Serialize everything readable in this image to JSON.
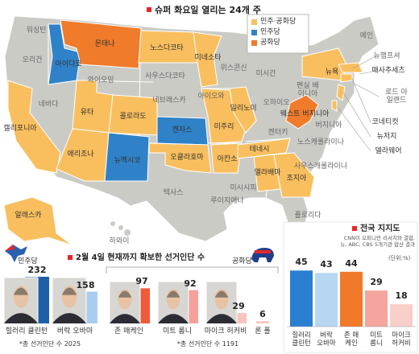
{
  "map": {
    "title": "슈퍼 화요일 열리는 24개 주",
    "legend": [
      {
        "label": "민주·공화당",
        "color": "#f9bf5e"
      },
      {
        "label": "민주당",
        "color": "#2f82c8"
      },
      {
        "label": "공화당",
        "color": "#f07b2b"
      }
    ],
    "states": [
      {
        "name": "워싱턴",
        "party": null
      },
      {
        "name": "오리건",
        "party": null
      },
      {
        "name": "캘리포니아",
        "party": 0
      },
      {
        "name": "네바다",
        "party": null
      },
      {
        "name": "아이다호",
        "party": 1
      },
      {
        "name": "몬태나",
        "party": 2
      },
      {
        "name": "와이오밍",
        "party": null
      },
      {
        "name": "유타",
        "party": 0
      },
      {
        "name": "애리조나",
        "party": 0
      },
      {
        "name": "콜로라도",
        "party": 0
      },
      {
        "name": "뉴멕시코",
        "party": 1
      },
      {
        "name": "노스다코타",
        "party": 0
      },
      {
        "name": "사우스다코타",
        "party": null
      },
      {
        "name": "네브래스카",
        "party": null
      },
      {
        "name": "캔자스",
        "party": 1
      },
      {
        "name": "오클라호마",
        "party": 0
      },
      {
        "name": "텍사스",
        "party": null
      },
      {
        "name": "미네소타",
        "party": 0
      },
      {
        "name": "아이오와",
        "party": null
      },
      {
        "name": "미주리",
        "party": 0
      },
      {
        "name": "아칸소",
        "party": 0
      },
      {
        "name": "루이지애나",
        "party": null
      },
      {
        "name": "위스콘신",
        "party": null
      },
      {
        "name": "일리노이",
        "party": 0
      },
      {
        "name": "미시간",
        "party": null
      },
      {
        "name": "오하이오",
        "party": null
      },
      {
        "name": "켄터키",
        "party": null
      },
      {
        "name": "테네시",
        "party": 0
      },
      {
        "name": "미시시피",
        "party": null
      },
      {
        "name": "앨라배마",
        "party": 0
      },
      {
        "name": "조지아",
        "party": 0
      },
      {
        "name": "플로리다",
        "party": null
      },
      {
        "name": "사우스캐롤라이나",
        "party": null
      },
      {
        "name": "노스캐롤라이나",
        "party": null
      },
      {
        "name": "버지니아",
        "party": null
      },
      {
        "name": "웨스트 버지니아",
        "party": 2
      },
      {
        "name": "펜실 베이니아",
        "party": null
      },
      {
        "name": "뉴욕",
        "party": 0
      },
      {
        "name": "메인",
        "party": null
      },
      {
        "name": "뉴햄프셔",
        "party": null
      },
      {
        "name": "매사추세츠",
        "party": 0
      },
      {
        "name": "로드 아일랜드",
        "party": null
      },
      {
        "name": "코네티컷",
        "party": 0
      },
      {
        "name": "뉴저지",
        "party": 0
      },
      {
        "name": "델라웨어",
        "party": 0
      },
      {
        "name": "알래스카",
        "party": 0
      },
      {
        "name": "하와이",
        "party": null
      }
    ]
  },
  "delegates": {
    "title": "2월 4일 현재까지 확보한 선거인단 수",
    "democratic": {
      "party_label": "민주당",
      "candidates": [
        "힐러리 클린턴",
        "버락 오바마"
      ],
      "values": [
        232,
        158
      ],
      "colors": [
        "#1f5fa8",
        "#a9cdee"
      ],
      "note": "*총 선거인단 수 2025"
    },
    "republican": {
      "party_label": "공화당",
      "candidates": [
        "존 매케인",
        "미트 롬니",
        "마이크 허커비",
        "론 폴"
      ],
      "values": [
        97,
        92,
        29,
        6
      ],
      "colors": [
        "#ee5a3a",
        "#f5a09a",
        "#f8c4bf",
        "#f8c4bf"
      ],
      "note": "*총 선거인단 수 1191"
    }
  },
  "chart_data": {
    "type": "bar",
    "title": "전국 지지도",
    "subtitle": "CNN이 오피니언 리서치와 결합, 뉴, ABC, CBS 5개기관 합산 결과",
    "unit_label": "(단위:%)",
    "categories": [
      "힐러리 클린턴",
      "버락 오바마",
      "존 매케인",
      "미트 롬니",
      "마이크 허커비"
    ],
    "values": [
      45,
      43,
      44,
      29,
      18
    ],
    "colors": [
      "#2a7fd0",
      "#b7d6f2",
      "#f07a2a",
      "#f5a59e",
      "#f9cfca"
    ]
  }
}
